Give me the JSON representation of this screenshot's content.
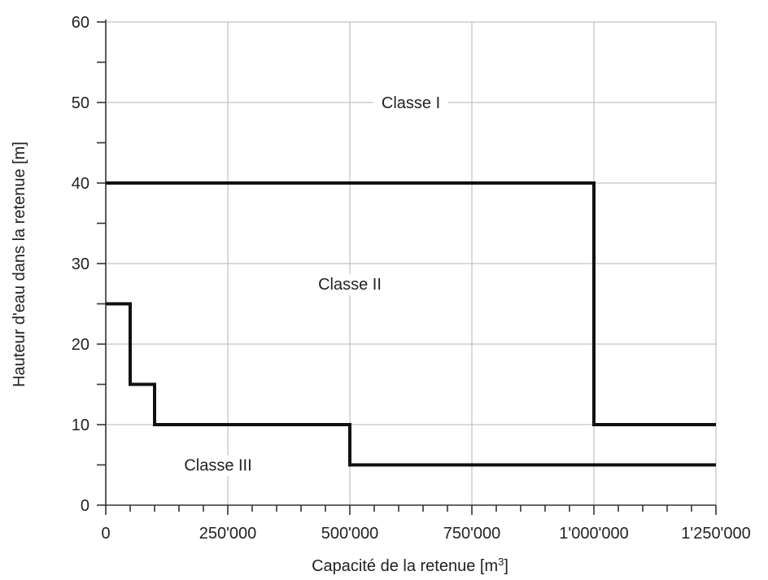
{
  "chart_data": {
    "type": "line",
    "title": "",
    "xlabel": "Capacité de la retenue [m",
    "xlabel_sup": "3",
    "xlabel_end": "]",
    "ylabel": "Hauteur d'eau dans la retenue [m]",
    "xlim": [
      0,
      1250000
    ],
    "ylim": [
      0,
      60
    ],
    "grid": true,
    "x_ticks": [
      {
        "value": 0,
        "label": "0"
      },
      {
        "value": 250000,
        "label": "250'000"
      },
      {
        "value": 500000,
        "label": "500'000"
      },
      {
        "value": 750000,
        "label": "750'000"
      },
      {
        "value": 1000000,
        "label": "1'000'000"
      },
      {
        "value": 1250000,
        "label": "1'250'000"
      }
    ],
    "y_ticks": [
      {
        "value": 0,
        "label": "0"
      },
      {
        "value": 10,
        "label": "10"
      },
      {
        "value": 20,
        "label": "20"
      },
      {
        "value": 30,
        "label": "30"
      },
      {
        "value": 40,
        "label": "40"
      },
      {
        "value": 50,
        "label": "50"
      },
      {
        "value": 60,
        "label": "60"
      }
    ],
    "series": [
      {
        "points": [
          [
            0,
            40
          ],
          [
            1000000,
            40
          ],
          [
            1000000,
            10
          ],
          [
            1250000,
            10
          ]
        ]
      },
      {
        "points": [
          [
            0,
            25
          ],
          [
            50000,
            25
          ],
          [
            50000,
            15
          ],
          [
            100000,
            15
          ],
          [
            100000,
            10
          ],
          [
            500000,
            10
          ],
          [
            500000,
            5
          ],
          [
            1250000,
            5
          ]
        ]
      }
    ],
    "annotations": [
      {
        "text": "Classe I",
        "x": 625000,
        "y": 50
      },
      {
        "text": "Classe II",
        "x": 500000,
        "y": 27.5
      },
      {
        "text": "Classe III",
        "x": 230000,
        "y": 5
      }
    ]
  }
}
